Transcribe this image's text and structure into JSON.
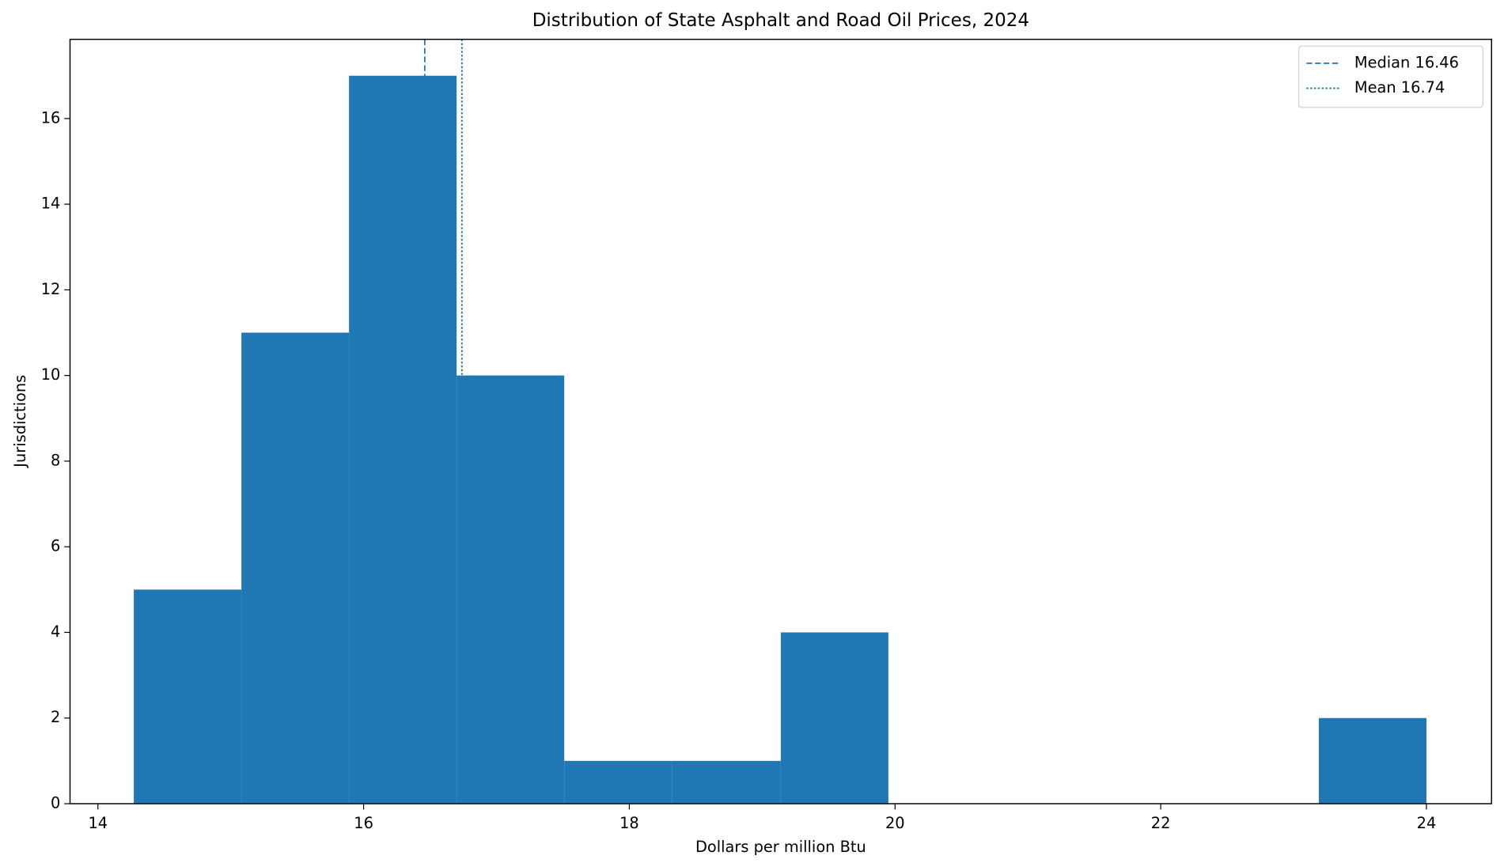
{
  "chart_data": {
    "type": "histogram",
    "title": "Distribution of State Asphalt and Road Oil Prices, 2024",
    "x_label": "Dollars per million Btu",
    "y_label": "Jurisdictions",
    "bins": [
      14.27,
      15.08,
      15.89,
      16.7,
      17.51,
      18.32,
      19.14,
      19.95,
      20.76,
      21.57,
      22.38,
      23.19,
      24.0
    ],
    "values": [
      5,
      11,
      17,
      10,
      1,
      1,
      4,
      0,
      0,
      0,
      0,
      2
    ],
    "color": "#1f77b4",
    "xlim": [
      13.79,
      24.49
    ],
    "xticks": [
      14,
      16,
      18,
      20,
      22,
      24
    ],
    "ylim": [
      0,
      17.85
    ],
    "yticks": [
      0,
      2,
      4,
      6,
      8,
      10,
      12,
      14,
      16
    ],
    "legend": "upper right",
    "lines": [
      {
        "name": "Median 16.46",
        "value": 16.46,
        "style": "dashed",
        "color": "#1f77b4"
      },
      {
        "name": "Mean 16.74",
        "value": 16.74,
        "style": "dotted",
        "color": "#1a7a9a"
      }
    ]
  }
}
